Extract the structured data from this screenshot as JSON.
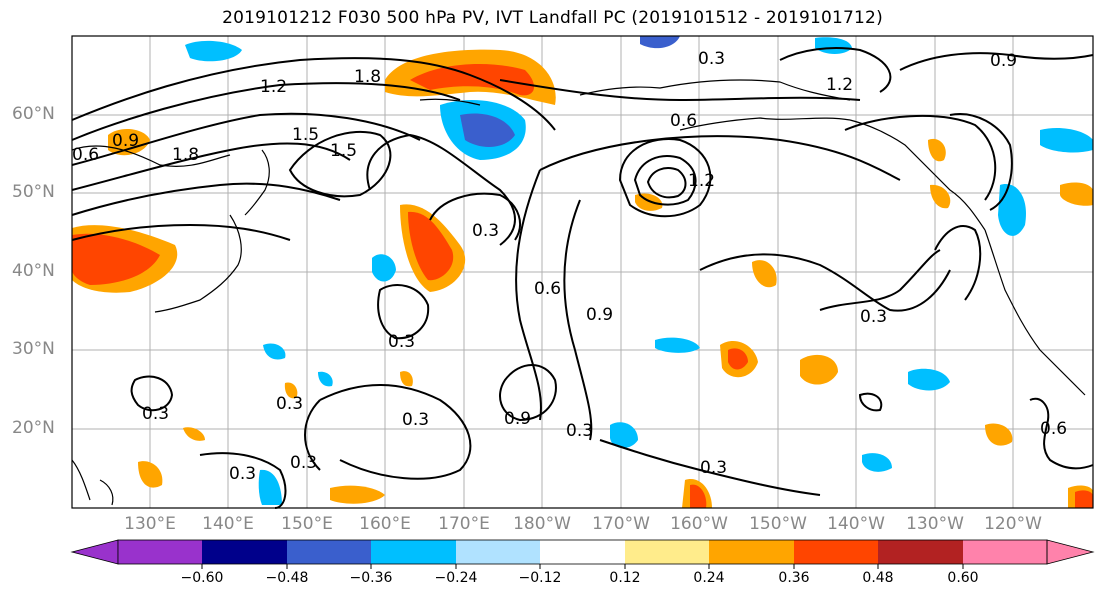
{
  "title": "2019101212 F030 500 hPa PV, IVT Landfall PC (2019101512 - 2019101712)",
  "map": {
    "lat_labels": [
      "60°N",
      "50°N",
      "40°N",
      "30°N",
      "20°N"
    ],
    "lon_labels": [
      "130°E",
      "140°E",
      "150°E",
      "160°E",
      "170°E",
      "180°W",
      "170°W",
      "160°W",
      "150°W",
      "140°W",
      "130°W",
      "120°W"
    ],
    "contour_labels": [
      "0.3",
      "0.6",
      "0.9",
      "1.2",
      "1.5",
      "1.8"
    ],
    "gridlines": true
  },
  "colorbar": {
    "ticks": [
      "−0.60",
      "−0.48",
      "−0.36",
      "−0.24",
      "−0.12",
      "0.12",
      "0.24",
      "0.36",
      "0.48",
      "0.60"
    ],
    "colors": [
      "#9932cc",
      "#00008b",
      "#3a5fcd",
      "#00bfff",
      "#b0e2ff",
      "#ffffff",
      "#ffec8b",
      "#ffa500",
      "#ff4500",
      "#b22222",
      "#ff82ab"
    ]
  }
}
